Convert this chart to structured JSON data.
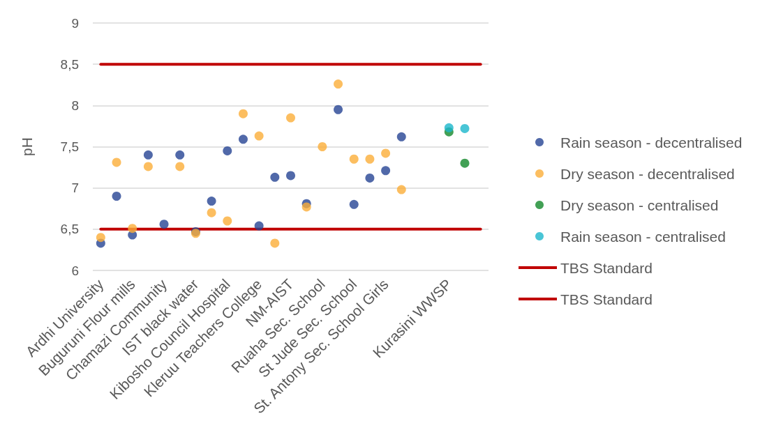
{
  "chart_data": {
    "type": "scatter",
    "ylabel": "pH",
    "categories": [
      "Ardhi University",
      null,
      "Buguruni Flour mills",
      null,
      "Chamazi Community",
      null,
      "IST black water",
      null,
      "Kibosho Council Hospital",
      null,
      "Kleruu Teachers College",
      null,
      "NM-AIST",
      null,
      "Ruaha Sec. School",
      null,
      "St Jude Sec. School",
      null,
      "St. Antony Sec. School Girls",
      null,
      null,
      null,
      "Kurasini WWSP",
      null,
      null
    ],
    "series": [
      {
        "name": "Rain season - decentralised",
        "color": "#254494",
        "values": [
          6.33,
          6.9,
          6.43,
          7.4,
          6.56,
          7.4,
          6.47,
          6.84,
          7.45,
          7.59,
          6.54,
          7.13,
          7.15,
          6.81,
          null,
          7.95,
          6.8,
          7.12,
          7.21,
          7.62,
          null,
          null,
          null,
          null,
          null
        ]
      },
      {
        "name": "Dry season - decentralised",
        "color": "#fbae38",
        "values": [
          6.4,
          7.31,
          6.51,
          7.26,
          null,
          7.26,
          6.45,
          6.7,
          6.6,
          7.9,
          7.63,
          6.33,
          7.85,
          6.77,
          7.5,
          8.26,
          7.35,
          7.35,
          7.42,
          6.98,
          null,
          null,
          null,
          null,
          null
        ]
      },
      {
        "name": "Dry season - centralised",
        "color": "#13882a",
        "values": [
          null,
          null,
          null,
          null,
          null,
          null,
          null,
          null,
          null,
          null,
          null,
          null,
          null,
          null,
          null,
          null,
          null,
          null,
          null,
          null,
          null,
          null,
          7.68,
          7.3,
          null
        ]
      },
      {
        "name": "Rain season - centralised",
        "color": "#1cb6cc",
        "values": [
          null,
          null,
          null,
          null,
          null,
          null,
          null,
          null,
          null,
          null,
          null,
          null,
          null,
          null,
          null,
          null,
          null,
          null,
          null,
          null,
          null,
          null,
          7.73,
          7.72,
          null
        ]
      },
      {
        "name": "TBS Standard",
        "type": "line",
        "color": "#c00000",
        "marker": "none",
        "values": [
          8.5,
          8.5,
          8.5,
          8.5,
          8.5,
          8.5,
          8.5,
          8.5,
          8.5,
          8.5,
          8.5,
          8.5,
          8.5,
          8.5,
          8.5,
          8.5,
          8.5,
          8.5,
          8.5,
          8.5,
          8.5,
          8.5,
          8.5,
          8.5,
          8.5
        ]
      },
      {
        "name": "TBS Standard",
        "type": "line",
        "color": "#c00000",
        "marker": "none",
        "values": [
          6.5,
          6.5,
          6.5,
          6.5,
          6.5,
          6.5,
          6.5,
          6.5,
          6.5,
          6.5,
          6.5,
          6.5,
          6.5,
          6.5,
          6.5,
          6.5,
          6.5,
          6.5,
          6.5,
          6.5,
          6.5,
          6.5,
          6.5,
          6.5,
          6.5
        ]
      }
    ],
    "ylim": [
      6,
      9
    ],
    "yticks": [
      6,
      {
        "value": 6.5,
        "label": "6,5"
      },
      7,
      {
        "value": 7.5,
        "label": "7,5"
      },
      8,
      {
        "value": 8.5,
        "label": "8,5"
      },
      9
    ],
    "grid": "y",
    "legend": "right",
    "marker": "circle"
  }
}
